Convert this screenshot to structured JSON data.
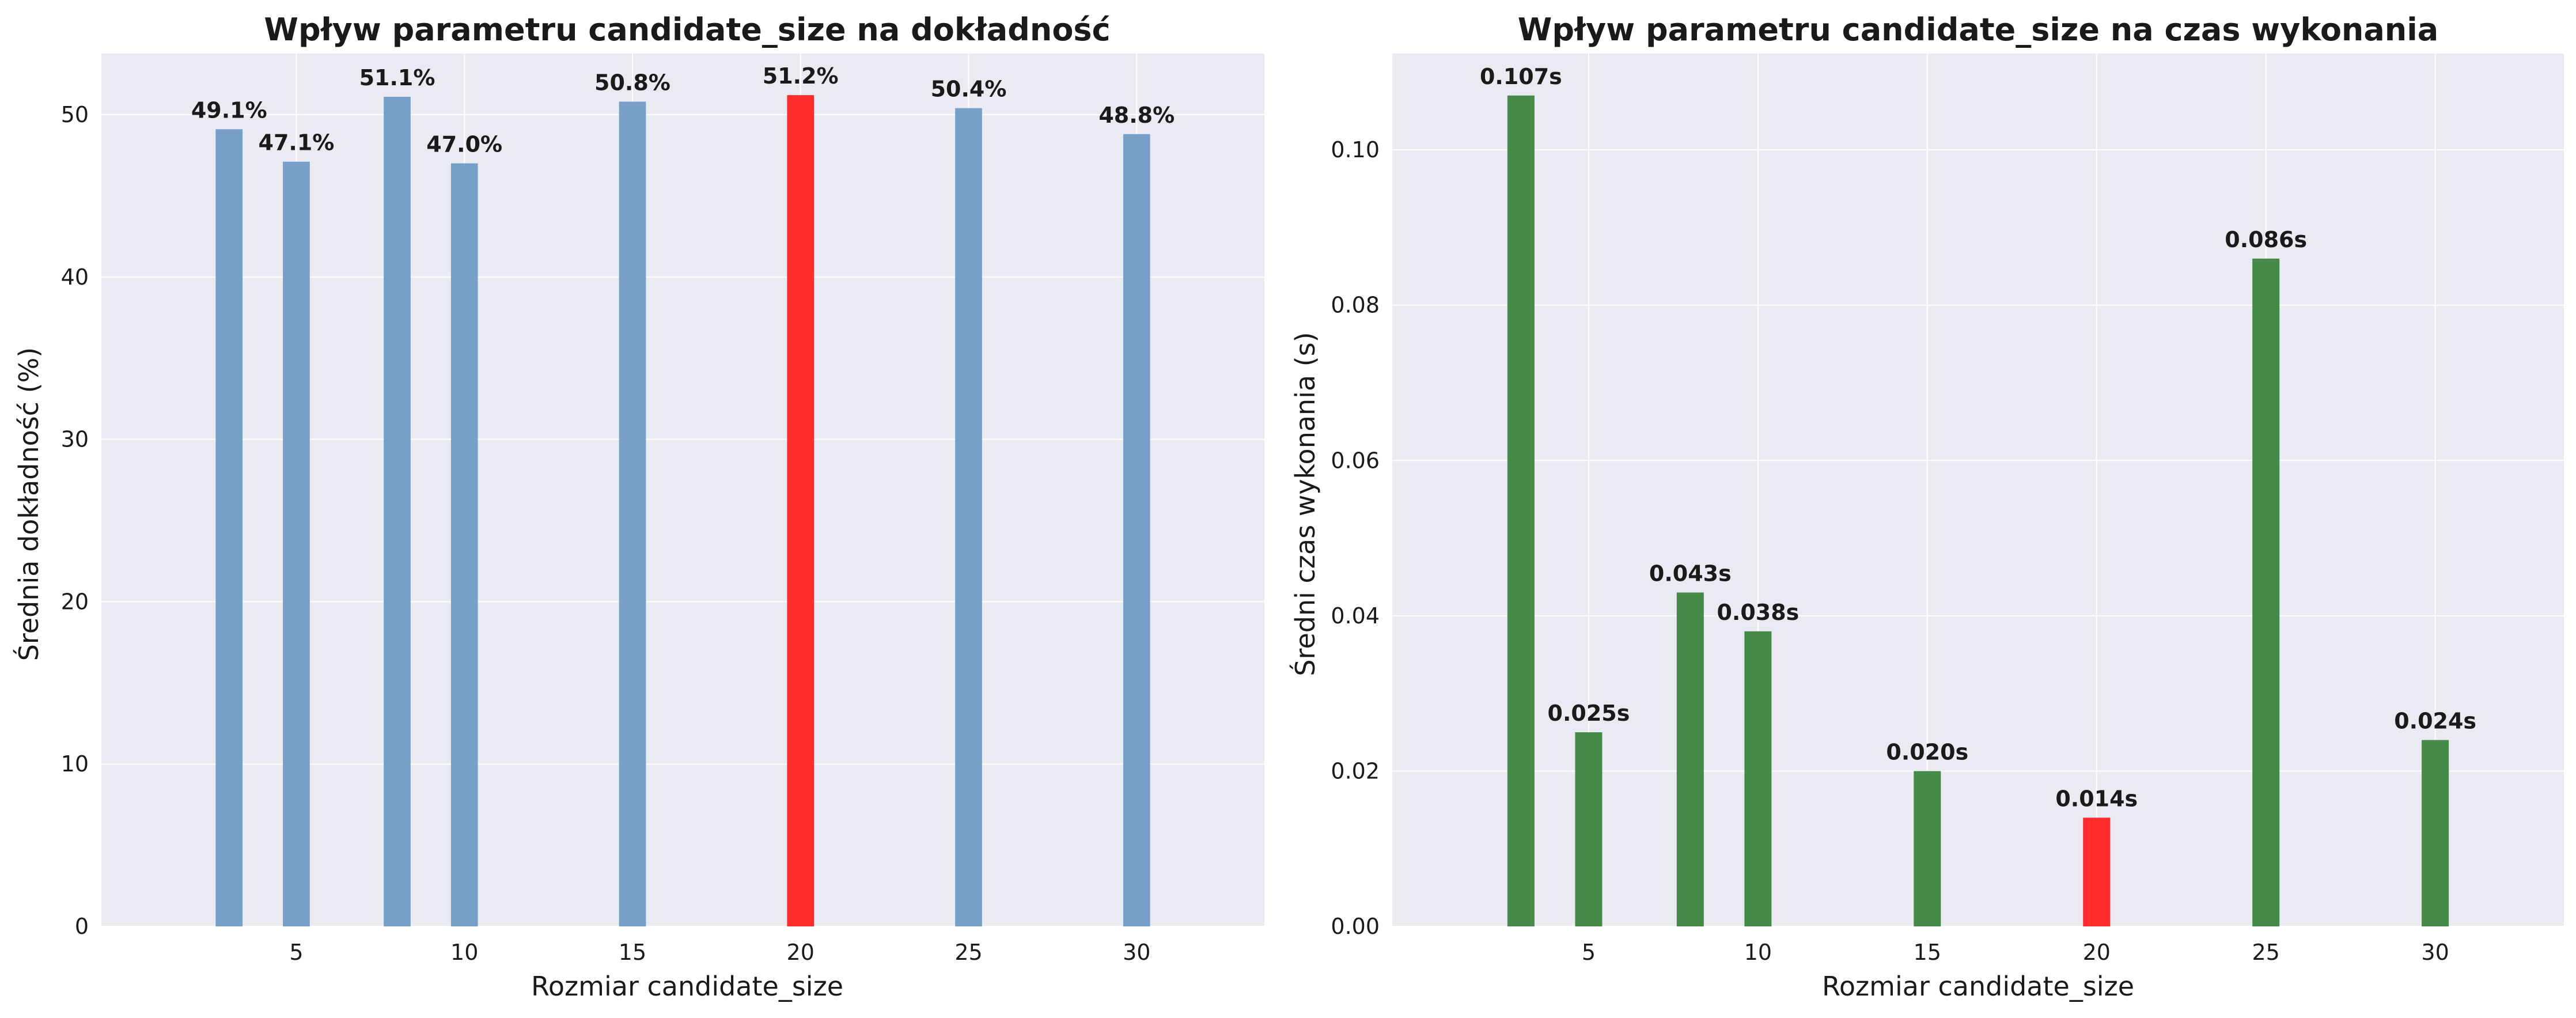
{
  "chart_data": [
    {
      "type": "bar",
      "title": "Wpływ parametru candidate_size na dokładność",
      "xlabel": "Rozmiar candidate_size",
      "ylabel": "Średnia dokładność (%)",
      "x": [
        3,
        5,
        8,
        10,
        15,
        20,
        25,
        30
      ],
      "values": [
        49.1,
        47.1,
        51.1,
        47.0,
        50.8,
        51.2,
        50.4,
        48.8
      ],
      "value_labels": [
        "49.1%",
        "47.1%",
        "51.1%",
        "47.0%",
        "50.8%",
        "51.2%",
        "50.4%",
        "48.8%"
      ],
      "highlight_index": 5,
      "xlim": [
        -0.8,
        33.8
      ],
      "ylim": [
        0,
        53.76
      ],
      "xticks": [
        5,
        10,
        15,
        20,
        25,
        30
      ],
      "xtick_labels": [
        "5",
        "10",
        "15",
        "20",
        "25",
        "30"
      ],
      "yticks": [
        0,
        10,
        20,
        30,
        40,
        50
      ],
      "ytick_labels": [
        "0",
        "10",
        "20",
        "30",
        "40",
        "50"
      ],
      "grid": true,
      "legend": "none",
      "colors": {
        "bar": "#779fc8",
        "highlight": "#fe2c2c",
        "background": "#eaeaf2",
        "grid": "#ffffff"
      }
    },
    {
      "type": "bar",
      "title": "Wpływ parametru candidate_size na czas wykonania",
      "xlabel": "Rozmiar candidate_size",
      "ylabel": "Średni czas wykonania (s)",
      "x": [
        3,
        5,
        8,
        10,
        15,
        20,
        25,
        30
      ],
      "values": [
        0.107,
        0.025,
        0.043,
        0.038,
        0.02,
        0.014,
        0.086,
        0.024
      ],
      "value_labels": [
        "0.107s",
        "0.025s",
        "0.043s",
        "0.038s",
        "0.020s",
        "0.014s",
        "0.086s",
        "0.024s"
      ],
      "highlight_index": 5,
      "xlim": [
        -0.8,
        33.8
      ],
      "ylim": [
        0,
        0.1124
      ],
      "xticks": [
        5,
        10,
        15,
        20,
        25,
        30
      ],
      "xtick_labels": [
        "5",
        "10",
        "15",
        "20",
        "25",
        "30"
      ],
      "yticks": [
        0,
        0.02,
        0.04,
        0.06,
        0.08,
        0.1
      ],
      "ytick_labels": [
        "0.00",
        "0.02",
        "0.04",
        "0.06",
        "0.08",
        "0.10"
      ],
      "grid": true,
      "legend": "none",
      "colors": {
        "bar": "#468a4a",
        "highlight": "#fe2c2c",
        "background": "#eaeaf2",
        "grid": "#ffffff"
      }
    }
  ]
}
